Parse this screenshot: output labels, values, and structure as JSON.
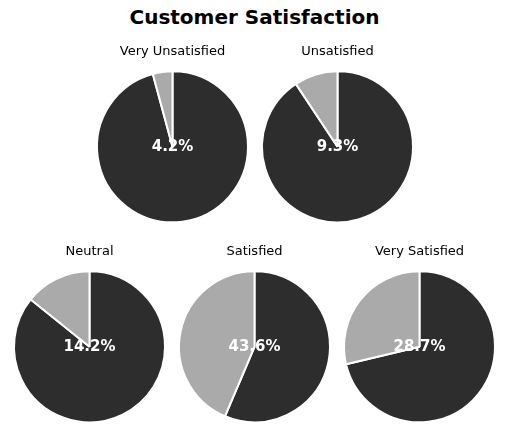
{
  "title": "Customer Satisfaction",
  "chart_data": [
    {
      "type": "pie",
      "title": "Very Unsatisfied",
      "values": [
        95.8,
        4.2
      ],
      "colors": [
        "#2d2d2d",
        "#aaaaaa"
      ],
      "data_labels": true,
      "value_labels": [
        null,
        "4.2%"
      ]
    },
    {
      "type": "pie",
      "title": "Unsatisfied",
      "values": [
        90.7,
        9.3
      ],
      "colors": [
        "#2d2d2d",
        "#aaaaaa"
      ],
      "data_labels": true,
      "value_labels": [
        null,
        "9.3%"
      ]
    },
    {
      "type": "pie",
      "title": "Neutral",
      "values": [
        85.8,
        14.2
      ],
      "colors": [
        "#2d2d2d",
        "#aaaaaa"
      ],
      "data_labels": true,
      "value_labels": [
        null,
        "14.2%"
      ]
    },
    {
      "type": "pie",
      "title": "Satisfied",
      "values": [
        56.4,
        43.6
      ],
      "colors": [
        "#2d2d2d",
        "#aaaaaa"
      ],
      "data_labels": true,
      "value_labels": [
        null,
        "43.6%"
      ]
    },
    {
      "type": "pie",
      "title": "Very Satisfied",
      "values": [
        71.3,
        28.7
      ],
      "colors": [
        "#2d2d2d",
        "#aaaaaa"
      ],
      "data_labels": true,
      "value_labels": [
        null,
        "28.7%"
      ]
    }
  ]
}
